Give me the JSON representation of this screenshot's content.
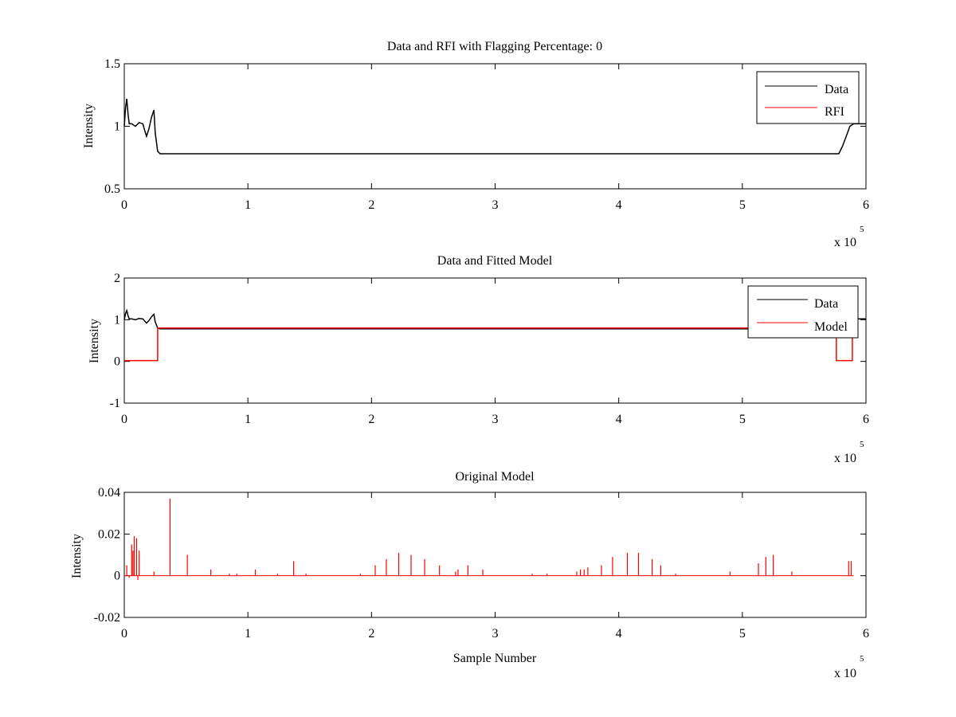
{
  "chart_data": [
    {
      "type": "line",
      "title": "Data and RFI with Flagging Percentage: 0",
      "xlabel": "",
      "ylabel": "Intensity",
      "xlim": [
        0,
        600000
      ],
      "ylim": [
        0.5,
        1.5
      ],
      "x_ticks": [
        0,
        1,
        2,
        3,
        4,
        5,
        6
      ],
      "x_tick_labels": [
        "0",
        "1",
        "2",
        "3",
        "4",
        "5",
        "6"
      ],
      "y_ticks": [
        0.5,
        1,
        1.5
      ],
      "y_tick_labels": [
        "0.5",
        "1",
        "1.5"
      ],
      "x_multiplier": {
        "base": "x 10",
        "exponent": "5"
      },
      "legend_position": "top-right",
      "grid": false,
      "series": [
        {
          "name": "Data",
          "color": "#000000",
          "x": [
            0,
            1000,
            2000,
            3000,
            4000,
            6000,
            9000,
            12000,
            15000,
            17000,
            18000,
            20000,
            22000,
            24000,
            25000,
            27000,
            29000,
            31000,
            100000,
            200000,
            300000,
            400000,
            500000,
            570000,
            578000,
            581000,
            584000,
            587000,
            590000,
            595000,
            600000
          ],
          "y": [
            1.0,
            1.15,
            1.22,
            1.1,
            1.02,
            1.02,
            1.0,
            1.03,
            1.02,
            0.95,
            0.92,
            0.98,
            1.07,
            1.13,
            0.95,
            0.8,
            0.78,
            0.78,
            0.78,
            0.78,
            0.78,
            0.78,
            0.78,
            0.78,
            0.78,
            0.84,
            0.92,
            1.0,
            1.02,
            1.02,
            1.02
          ]
        },
        {
          "name": "RFI",
          "color": "#ff0000",
          "x": [],
          "y": []
        }
      ]
    },
    {
      "type": "line",
      "title": "Data and Fitted Model",
      "xlabel": "",
      "ylabel": "Intensity",
      "xlim": [
        0,
        600000
      ],
      "ylim": [
        -1,
        2
      ],
      "x_ticks": [
        0,
        1,
        2,
        3,
        4,
        5,
        6
      ],
      "x_tick_labels": [
        "0",
        "1",
        "2",
        "3",
        "4",
        "5",
        "6"
      ],
      "y_ticks": [
        -1,
        0,
        1,
        2
      ],
      "y_tick_labels": [
        "-1",
        "0",
        "1",
        "2"
      ],
      "x_multiplier": {
        "base": "x 10",
        "exponent": "5"
      },
      "legend_position": "top-right",
      "grid": false,
      "series": [
        {
          "name": "Data",
          "color": "#000000",
          "x": [
            0,
            1000,
            2000,
            3000,
            4000,
            6000,
            9000,
            12000,
            15000,
            17000,
            18000,
            20000,
            22000,
            24000,
            25000,
            27000,
            29000,
            31000,
            100000,
            200000,
            300000,
            400000,
            500000,
            570000,
            578000,
            581000,
            584000,
            587000,
            590000,
            595000,
            600000
          ],
          "y": [
            1.0,
            1.15,
            1.22,
            1.1,
            1.02,
            1.02,
            1.0,
            1.03,
            1.02,
            0.95,
            0.92,
            0.98,
            1.07,
            1.13,
            0.95,
            0.8,
            0.78,
            0.78,
            0.78,
            0.78,
            0.78,
            0.78,
            0.78,
            0.78,
            0.78,
            0.84,
            0.92,
            1.0,
            1.02,
            1.02,
            1.02
          ]
        },
        {
          "name": "Model",
          "color": "#ff0000",
          "x": [
            0,
            27000,
            27000,
            576000,
            576000,
            589000,
            589000,
            590000
          ],
          "y": [
            0.02,
            0.02,
            0.8,
            0.8,
            0.02,
            0.02,
            0.8,
            0.8
          ]
        }
      ]
    },
    {
      "type": "line",
      "title": "Original Model",
      "xlabel": "Sample Number",
      "ylabel": "Intensity",
      "xlim": [
        0,
        600000
      ],
      "ylim": [
        -0.02,
        0.04
      ],
      "x_ticks": [
        0,
        1,
        2,
        3,
        4,
        5,
        6
      ],
      "x_tick_labels": [
        "0",
        "1",
        "2",
        "3",
        "4",
        "5",
        "6"
      ],
      "y_ticks": [
        -0.02,
        0,
        0.02,
        0.04
      ],
      "y_tick_labels": [
        "-0.02",
        "0",
        "0.02",
        "0.04"
      ],
      "x_multiplier": {
        "base": "x 10",
        "exponent": "5"
      },
      "grid": false,
      "series": [
        {
          "color": "#ff0000",
          "baseline": 0,
          "spikes": {
            "x": [
              2000,
              4000,
              6000,
              7000,
              8000,
              10000,
              11000,
              12000,
              24000,
              37000,
              51000,
              70000,
              85000,
              91000,
              106000,
              124000,
              137000,
              147000,
              191000,
              203000,
              212000,
              222000,
              232000,
              243000,
              255000,
              268000,
              270000,
              278000,
              290000,
              330000,
              342000,
              366000,
              369000,
              372000,
              375000,
              386000,
              395000,
              407000,
              416000,
              427000,
              434000,
              446000,
              490000,
              513000,
              519000,
              525000,
              540000,
              586000,
              588000
            ],
            "y": [
              0.005,
              -0.001,
              0.015,
              0.012,
              0.019,
              0.018,
              -0.002,
              0.012,
              0.002,
              0.037,
              0.01,
              0.003,
              0.001,
              0.001,
              0.003,
              0.001,
              0.007,
              0.001,
              0.001,
              0.005,
              0.008,
              0.011,
              0.01,
              0.008,
              0.005,
              0.002,
              0.003,
              0.005,
              0.003,
              0.001,
              0.001,
              0.002,
              0.003,
              0.003,
              0.004,
              0.005,
              0.009,
              0.011,
              0.011,
              0.008,
              0.005,
              0.001,
              0.002,
              0.006,
              0.009,
              0.01,
              0.002,
              0.007,
              0.007
            ]
          }
        }
      ]
    }
  ]
}
